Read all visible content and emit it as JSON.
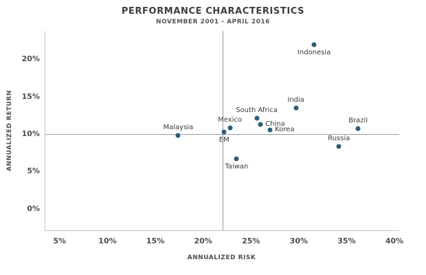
{
  "title": "PERFORMANCE CHARACTERISTICS",
  "subtitle": "NOVEMBER 2001 - APRIL 2016",
  "chart_data": {
    "type": "scatter",
    "title": "PERFORMANCE CHARACTERISTICS",
    "subtitle": "NOVEMBER 2001 - APRIL 2016",
    "xlabel": "ANNUALIZED RISK",
    "ylabel": "ANNUALIZED RETURN",
    "xlim": [
      3.5,
      40.5
    ],
    "ylim": [
      -2.8,
      23.9
    ],
    "x_ticks": [
      5,
      10,
      15,
      20,
      25,
      30,
      35,
      40
    ],
    "y_ticks": [
      0,
      5,
      10,
      15,
      20
    ],
    "tick_suffix": "%",
    "grid": false,
    "dot_color": "#2d5d78",
    "crosshair": {
      "x": 22.0,
      "y": 10.1
    },
    "points": [
      {
        "name": "Malaysia",
        "x": 17.4,
        "y": 9.9,
        "label_pos": "above"
      },
      {
        "name": "EM",
        "x": 22.2,
        "y": 10.35,
        "label_pos": "below"
      },
      {
        "name": "Mexico",
        "x": 22.8,
        "y": 10.9,
        "label_pos": "above"
      },
      {
        "name": "Taiwan",
        "x": 23.5,
        "y": 6.8,
        "label_pos": "below"
      },
      {
        "name": "South Africa",
        "x": 25.6,
        "y": 12.2,
        "label_pos": "above"
      },
      {
        "name": "China",
        "x": 26.0,
        "y": 11.4,
        "label_pos": "right"
      },
      {
        "name": "Korea",
        "x": 27.0,
        "y": 10.6,
        "label_pos": "right"
      },
      {
        "name": "India",
        "x": 29.7,
        "y": 13.6,
        "label_pos": "above"
      },
      {
        "name": "Indonesia",
        "x": 31.6,
        "y": 22.1,
        "label_pos": "below"
      },
      {
        "name": "Russia",
        "x": 34.2,
        "y": 8.4,
        "label_pos": "above"
      },
      {
        "name": "Brazil",
        "x": 36.2,
        "y": 10.8,
        "label_pos": "above"
      }
    ]
  }
}
